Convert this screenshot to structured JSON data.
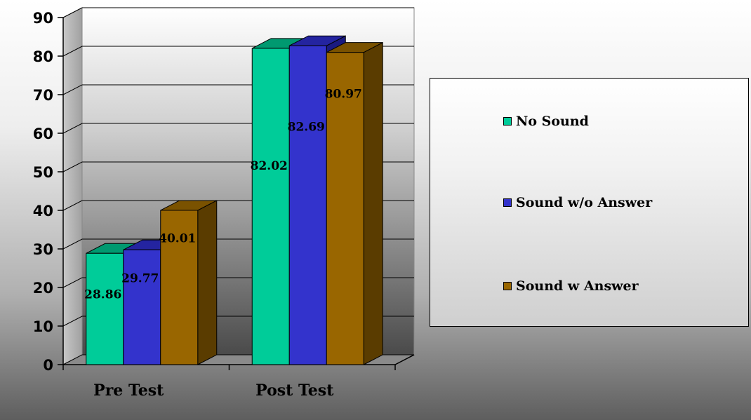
{
  "chart_data": {
    "type": "bar",
    "categories": [
      "Pre Test",
      "Post Test"
    ],
    "series": [
      {
        "name": "No Sound",
        "values": [
          28.86,
          82.02
        ],
        "color": "#00cc99",
        "top_color": "#009970",
        "side_color": "#007a5a"
      },
      {
        "name": "Sound w/o Answer",
        "values": [
          29.77,
          82.69
        ],
        "color": "#3333cc",
        "top_color": "#2424a0",
        "side_color": "#1a1a80"
      },
      {
        "name": "Sound w Answer",
        "values": [
          40.01,
          80.97
        ],
        "color": "#996600",
        "top_color": "#7a5200",
        "side_color": "#5a3c00"
      }
    ],
    "data_labels": [
      [
        "28.86",
        "29.77",
        "40.01"
      ],
      [
        "82.02",
        "82.69",
        "80.97"
      ]
    ],
    "yticks": [
      "0",
      "10",
      "20",
      "30",
      "40",
      "50",
      "60",
      "70",
      "80",
      "90"
    ],
    "ylim": [
      0,
      90
    ],
    "grid": true,
    "legend_position": "right",
    "title": "",
    "xlabel": "",
    "ylabel": ""
  }
}
